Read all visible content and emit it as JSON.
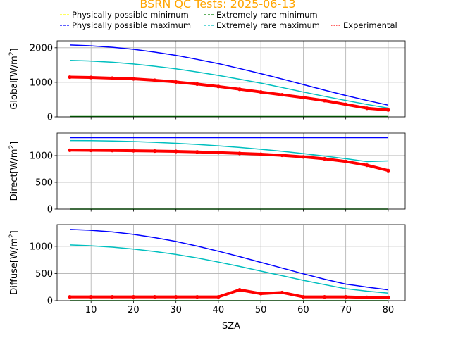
{
  "figure": {
    "title": "BSRN QC Tests: 2025-06-13",
    "title_color": "#FFA500",
    "xlabel": "SZA"
  },
  "legend": [
    {
      "label": "Physically possible minimum",
      "color": "#FFFF00",
      "style": "dashed"
    },
    {
      "label": "Physically possible maximum",
      "color": "#0000FF",
      "style": "dashed"
    },
    {
      "label": "Extremely rare minimum",
      "color": "#008000",
      "style": "dashed"
    },
    {
      "label": "Extremely rare maximum",
      "color": "#00BFBF",
      "style": "dashed"
    },
    {
      "label": "Experimental",
      "color": "#FF0000",
      "style": "dotted"
    }
  ],
  "chart_data": [
    {
      "type": "line",
      "ylabel_main": "Global",
      "ylabel_unit": "[W/m",
      "ylabel_sup": "2",
      "ylabel_close": "]",
      "xlim": [
        2,
        84
      ],
      "ylim": [
        0,
        2200
      ],
      "xticks": [
        10,
        20,
        30,
        40,
        50,
        60,
        70,
        80
      ],
      "yticks": [
        0,
        1000,
        2000
      ],
      "grid": true,
      "x": [
        5,
        10,
        15,
        20,
        25,
        30,
        35,
        40,
        45,
        50,
        55,
        60,
        65,
        70,
        75,
        80
      ],
      "series": [
        {
          "name": "Physically possible maximum",
          "color": "#0000FF",
          "values": [
            2080,
            2055,
            2015,
            1955,
            1875,
            1780,
            1665,
            1540,
            1400,
            1250,
            1095,
            935,
            775,
            620,
            475,
            340
          ]
        },
        {
          "name": "Extremely rare maximum",
          "color": "#00BFBF",
          "values": [
            1635,
            1615,
            1580,
            1530,
            1465,
            1390,
            1300,
            1200,
            1090,
            975,
            850,
            720,
            595,
            475,
            360,
            255
          ]
        },
        {
          "name": "Extremely rare minimum",
          "color": "#008000",
          "values": [
            10,
            10,
            10,
            10,
            10,
            10,
            10,
            10,
            10,
            10,
            10,
            10,
            10,
            10,
            10,
            10
          ]
        },
        {
          "name": "Experimental",
          "color": "#FF0000",
          "values": [
            1150,
            1140,
            1120,
            1100,
            1060,
            1010,
            950,
            880,
            800,
            720,
            640,
            560,
            470,
            360,
            250,
            200
          ]
        }
      ]
    },
    {
      "type": "line",
      "ylabel_main": "Direct",
      "ylabel_unit": "[W/m",
      "ylabel_sup": "2",
      "ylabel_close": "]",
      "xlim": [
        2,
        84
      ],
      "ylim": [
        0,
        1420
      ],
      "xticks": [
        10,
        20,
        30,
        40,
        50,
        60,
        70,
        80
      ],
      "yticks": [
        0,
        500,
        1000
      ],
      "grid": true,
      "x": [
        5,
        10,
        15,
        20,
        25,
        30,
        35,
        40,
        45,
        50,
        55,
        60,
        65,
        70,
        75,
        80
      ],
      "series": [
        {
          "name": "Physically possible maximum",
          "color": "#0000FF",
          "values": [
            1335,
            1335,
            1335,
            1335,
            1335,
            1335,
            1335,
            1335,
            1335,
            1335,
            1335,
            1335,
            1335,
            1335,
            1335,
            1335
          ]
        },
        {
          "name": "Extremely rare maximum",
          "color": "#00BFBF",
          "values": [
            1280,
            1278,
            1272,
            1262,
            1248,
            1230,
            1208,
            1182,
            1152,
            1118,
            1080,
            1038,
            992,
            942,
            888,
            900
          ]
        },
        {
          "name": "Extremely rare minimum",
          "color": "#008000",
          "values": [
            0,
            0,
            0,
            0,
            0,
            0,
            0,
            0,
            0,
            0,
            0,
            0,
            0,
            0,
            0,
            0
          ]
        },
        {
          "name": "Experimental",
          "color": "#FF0000",
          "values": [
            1100,
            1098,
            1095,
            1090,
            1085,
            1078,
            1068,
            1055,
            1040,
            1025,
            1005,
            975,
            940,
            890,
            820,
            720
          ]
        }
      ]
    },
    {
      "type": "line",
      "ylabel_main": "Diffuse",
      "ylabel_unit": "[W/m",
      "ylabel_sup": "2",
      "ylabel_close": "]",
      "xlim": [
        2,
        84
      ],
      "ylim": [
        0,
        1400
      ],
      "xticks": [
        10,
        20,
        30,
        40,
        50,
        60,
        70,
        80
      ],
      "yticks": [
        0,
        500,
        1000
      ],
      "grid": true,
      "x": [
        5,
        10,
        15,
        20,
        25,
        30,
        35,
        40,
        45,
        50,
        55,
        60,
        65,
        70,
        75,
        80
      ],
      "series": [
        {
          "name": "Physically possible maximum",
          "color": "#0000FF",
          "values": [
            1310,
            1295,
            1265,
            1220,
            1160,
            1090,
            1005,
            910,
            810,
            705,
            600,
            495,
            395,
            305,
            250,
            200
          ]
        },
        {
          "name": "Extremely rare maximum",
          "color": "#00BFBF",
          "values": [
            1025,
            1010,
            985,
            950,
            905,
            850,
            785,
            710,
            630,
            545,
            460,
            375,
            295,
            220,
            175,
            140
          ]
        },
        {
          "name": "Extremely rare minimum",
          "color": "#008000",
          "values": [
            0,
            0,
            0,
            0,
            0,
            0,
            0,
            0,
            0,
            0,
            0,
            0,
            0,
            0,
            0,
            0
          ]
        },
        {
          "name": "Experimental",
          "color": "#FF0000",
          "values": [
            70,
            70,
            70,
            70,
            70,
            70,
            70,
            70,
            200,
            130,
            150,
            70,
            70,
            70,
            60,
            60
          ]
        }
      ]
    }
  ]
}
